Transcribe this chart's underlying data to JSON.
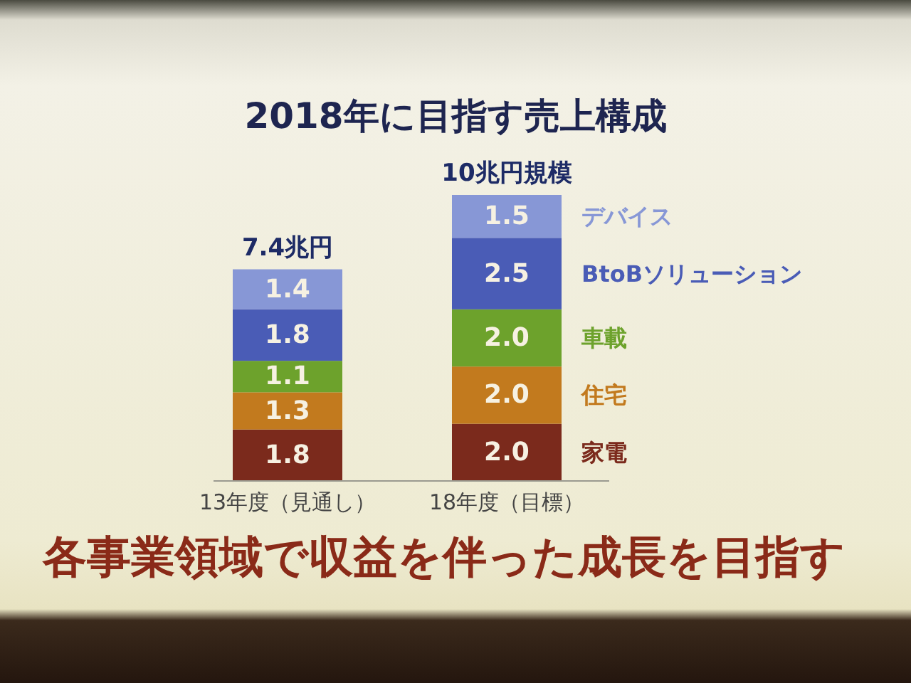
{
  "chart_data": {
    "type": "bar",
    "title": "2018年に目指す売上構成",
    "categories": [
      "13年度（見通し）",
      "18年度（目標）"
    ],
    "stacked": true,
    "series": [
      {
        "name": "家電",
        "color": "#7b2a1c",
        "values": [
          1.8,
          2.0
        ],
        "value_labels": [
          "1.8",
          "2.0"
        ]
      },
      {
        "name": "住宅",
        "color": "#c27a1e",
        "values": [
          1.3,
          2.0
        ],
        "value_labels": [
          "1.3",
          "2.0"
        ]
      },
      {
        "name": "車載",
        "color": "#6da22c",
        "values": [
          1.1,
          2.0
        ],
        "value_labels": [
          "1.1",
          "2.0"
        ]
      },
      {
        "name": "BtoBソリューション",
        "color": "#4a5cb6",
        "values": [
          1.8,
          2.5
        ],
        "value_labels": [
          "1.8",
          "2.5"
        ]
      },
      {
        "name": "デバイス",
        "color": "#8797d6",
        "values": [
          1.4,
          1.5
        ],
        "value_labels": [
          "1.4",
          "1.5"
        ]
      }
    ],
    "totals": [
      "7.4兆円",
      "10兆円規模"
    ],
    "annotations": [
      "各事業領域で収益を伴った成長を目指す"
    ]
  }
}
